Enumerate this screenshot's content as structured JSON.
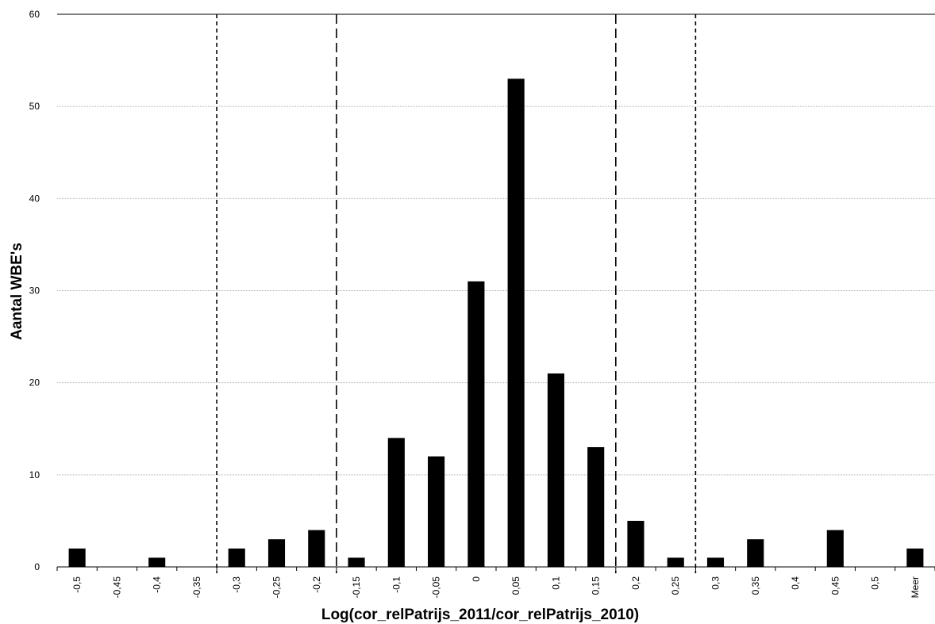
{
  "chart_data": {
    "type": "bar",
    "title": "",
    "xlabel": "Log(cor_relPatrijs_2011/cor_relPatrijs_2010)",
    "ylabel": "Aantal WBE's",
    "categories": [
      "-0,5",
      "-0,45",
      "-0,4",
      "-0,35",
      "-0,3",
      "-0,25",
      "-0,2",
      "-0,15",
      "-0,1",
      "-0,05",
      "0",
      "0,05",
      "0,1",
      "0,15",
      "0,2",
      "0,25",
      "0,3",
      "0,35",
      "0,4",
      "0,45",
      "0,5",
      "Meer"
    ],
    "values": [
      2,
      0,
      1,
      0,
      2,
      3,
      4,
      1,
      14,
      12,
      31,
      53,
      21,
      13,
      5,
      1,
      1,
      3,
      0,
      4,
      0,
      2
    ],
    "ylim": [
      0,
      60
    ],
    "yticks": [
      0,
      10,
      20,
      30,
      40,
      50,
      60
    ],
    "grid": true,
    "reference_lines": [
      {
        "position": "between -0,35 and -0,3",
        "style": "short-dash"
      },
      {
        "position": "between -0,2 and -0,15",
        "style": "long-dash"
      },
      {
        "position": "between 0,15 and 0,2",
        "style": "long-dash"
      },
      {
        "position": "between 0,25 and 0,3",
        "style": "short-dash"
      }
    ],
    "colors": {
      "bar": "#000000",
      "grid": "#b4b4b4",
      "axis": "#000000"
    }
  }
}
